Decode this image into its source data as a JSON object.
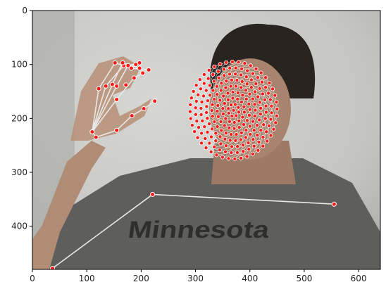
{
  "figure": {
    "image_width": 640,
    "image_height": 480,
    "x_ticks": [
      0,
      100,
      200,
      300,
      400,
      500,
      600
    ],
    "y_ticks": [
      0,
      100,
      200,
      300,
      400
    ],
    "shirt_text": "Minnesota",
    "colors": {
      "landmark_fill": "#ff1a1a",
      "landmark_stroke": "#ffffff",
      "connection": "#e8e8e8",
      "wall": "#c9cac7",
      "shirt": "#5e5f5c",
      "shirt_text": "#2e2f2c",
      "skin": "#a8846e",
      "hair": "#2a2420"
    }
  },
  "chart_data": {
    "type": "scatter",
    "title": "",
    "xlabel": "",
    "ylabel": "",
    "xlim": [
      0,
      640
    ],
    "ylim": [
      480,
      0
    ],
    "y_inverted": true,
    "grid": false,
    "series": [
      {
        "points": [
          [
            110,
            225
          ],
          [
            117,
            235
          ],
          [
            122,
            145
          ],
          [
            135,
            140
          ],
          [
            147,
            137
          ],
          [
            155,
            140
          ],
          [
            155,
            165
          ],
          [
            155,
            222
          ],
          [
            168,
            102
          ],
          [
            172,
            138
          ],
          [
            183,
            195
          ],
          [
            187,
            125
          ],
          [
            205,
            182
          ],
          [
            225,
            168
          ],
          [
            152,
            97
          ],
          [
            166,
            97
          ],
          [
            176,
            102
          ],
          [
            182,
            107
          ],
          [
            190,
            100
          ],
          [
            197,
            107
          ],
          [
            197,
            97
          ],
          [
            203,
            116
          ],
          [
            214,
            110
          ]
        ],
        "connections": [
          [
            0,
            1
          ],
          [
            1,
            7
          ],
          [
            7,
            10
          ],
          [
            10,
            12
          ],
          [
            12,
            13
          ],
          [
            0,
            2
          ],
          [
            0,
            3
          ],
          [
            0,
            4
          ],
          [
            0,
            5
          ],
          [
            0,
            6
          ],
          [
            2,
            14
          ],
          [
            3,
            8
          ],
          [
            4,
            15
          ],
          [
            5,
            16
          ],
          [
            6,
            11
          ],
          [
            14,
            17
          ],
          [
            8,
            18
          ],
          [
            15,
            19
          ],
          [
            16,
            20
          ],
          [
            11,
            21
          ],
          [
            17,
            22
          ]
        ]
      },
      {
        "points": [
          [
            37,
            478
          ],
          [
            221,
            341
          ],
          [
            555,
            359
          ]
        ],
        "connections": [
          [
            0,
            1
          ],
          [
            1,
            2
          ],
          [
            0,
            0
          ]
        ]
      },
      {
        "points": [
          [
            110,
            225
          ]
        ],
        "connections": [
          [
            0,
            0
          ]
        ]
      },
      {
        "face_center": [
          370,
          185
        ],
        "face_radius_x": 80,
        "face_radius_y": 90
      }
    ]
  }
}
